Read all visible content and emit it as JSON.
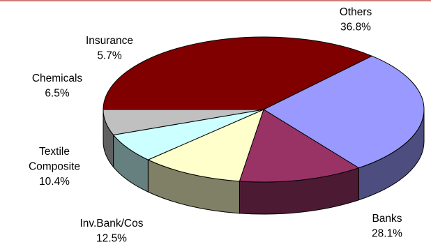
{
  "chart_data": {
    "type": "pie",
    "title": "",
    "three_d": true,
    "legend": "none",
    "start_angle_direction": "clockwise from left (9 o'clock) to top",
    "slices": [
      {
        "label": [
          "Others"
        ],
        "percent": "36.8%",
        "value": 36.8,
        "color": "#800000"
      },
      {
        "label": [
          "Banks"
        ],
        "percent": "28.1%",
        "value": 28.1,
        "color": "#9999ff"
      },
      {
        "label": [
          "Inv.Bank/Cos"
        ],
        "percent": "12.5%",
        "value": 12.5,
        "color": "#993366"
      },
      {
        "label": [
          "Textile",
          "Composite"
        ],
        "percent": "10.4%",
        "value": 10.4,
        "color": "#ffffcc"
      },
      {
        "label": [
          "Chemicals"
        ],
        "percent": "6.5%",
        "value": 6.5,
        "color": "#ccffff"
      },
      {
        "label": [
          "Insurance"
        ],
        "percent": "5.7%",
        "value": 5.7,
        "color": "#c0c0c0"
      }
    ],
    "top_rule_color": "#c0504d"
  }
}
